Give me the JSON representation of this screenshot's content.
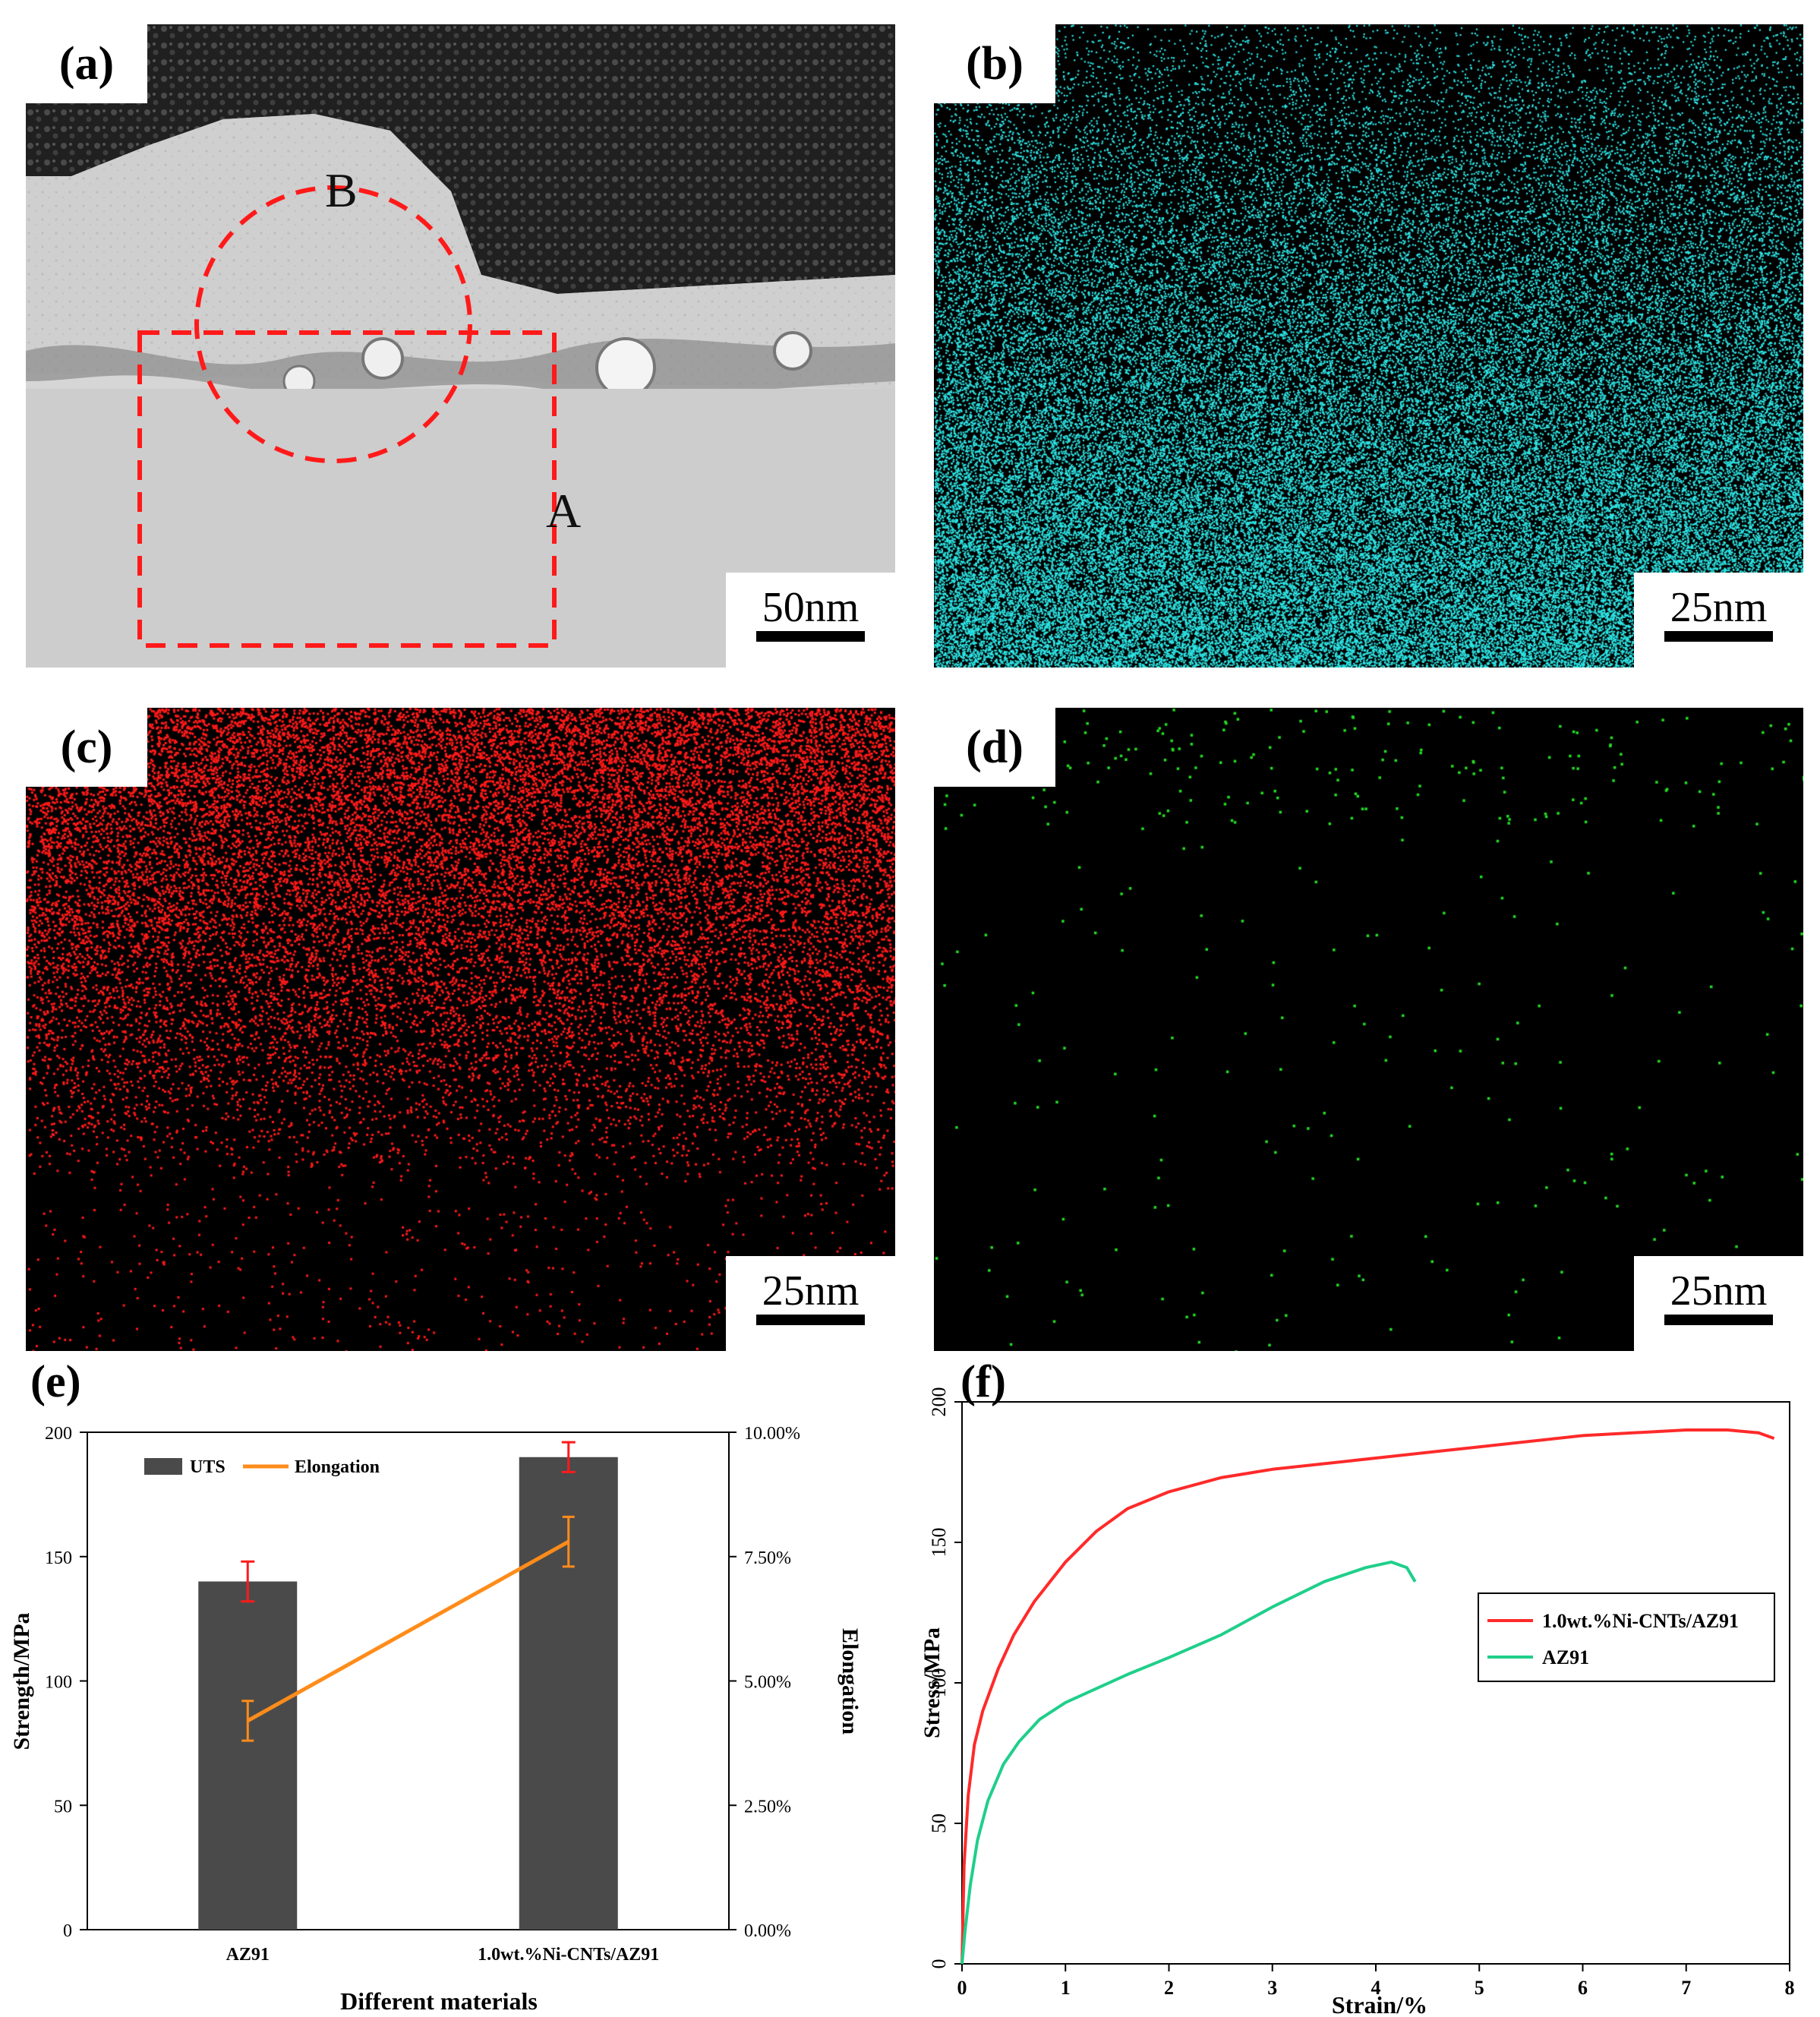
{
  "panels": {
    "a": {
      "letter": "(a)",
      "scale": "50nm",
      "label_a": "A",
      "label_b": "B"
    },
    "b": {
      "letter": "(b)",
      "scale": "25nm",
      "dot_color": "#2ee6e6"
    },
    "c": {
      "letter": "(c)",
      "scale": "25nm",
      "dot_color": "#ff1a1a"
    },
    "d": {
      "letter": "(d)",
      "scale": "25nm",
      "dot_color": "#22dd22"
    },
    "e": {
      "letter": "(e)"
    },
    "f": {
      "letter": "(f)"
    }
  },
  "chart_data": [
    {
      "panel": "e",
      "type": "bar",
      "categories": [
        "AZ91",
        "1.0wt.%Ni-CNTs/AZ91"
      ],
      "series": [
        {
          "name": "UTS",
          "axis": "left",
          "values": [
            140,
            190
          ],
          "errors": [
            8,
            6
          ],
          "color": "#4a4a4a"
        },
        {
          "name": "Elongation",
          "axis": "right",
          "chart": "line",
          "values": [
            0.042,
            0.078
          ],
          "errors": [
            0.004,
            0.005
          ],
          "color": "#ff8c1a"
        }
      ],
      "xlabel": "Different materials",
      "ylabel": "Strength/MPa",
      "y2label": "Elongation",
      "ylim": [
        0,
        200
      ],
      "y2lim": [
        0,
        0.1
      ],
      "yticks": [
        "0",
        "50",
        "100",
        "150",
        "200"
      ],
      "y2ticks": [
        "0.00%",
        "2.50%",
        "5.00%",
        "7.50%",
        "10.00%"
      ],
      "legend": "top-left",
      "grid": false
    },
    {
      "panel": "f",
      "type": "line",
      "xlabel": "Strain/%",
      "ylabel": "Stress/MPa",
      "xlim": [
        0,
        8
      ],
      "ylim": [
        0,
        200
      ],
      "xticks": [
        "0",
        "1",
        "2",
        "3",
        "4",
        "5",
        "6",
        "7",
        "8"
      ],
      "yticks": [
        "0",
        "50",
        "100",
        "150",
        "200"
      ],
      "legend": "right",
      "grid": false,
      "series": [
        {
          "name": "1.0wt.%Ni-CNTs/AZ91",
          "color": "#ff2a2a",
          "x": [
            0,
            0.02,
            0.06,
            0.12,
            0.2,
            0.35,
            0.5,
            0.7,
            1.0,
            1.3,
            1.6,
            2.0,
            2.5,
            3.0,
            4.0,
            5.0,
            6.0,
            7.0,
            7.4,
            7.7,
            7.85
          ],
          "y": [
            0,
            35,
            60,
            78,
            90,
            105,
            117,
            129,
            143,
            154,
            162,
            168,
            173,
            176,
            180,
            184,
            188,
            190,
            190,
            189,
            187
          ]
        },
        {
          "name": "AZ91",
          "color": "#1fcf8a",
          "x": [
            0,
            0.03,
            0.08,
            0.15,
            0.25,
            0.4,
            0.55,
            0.75,
            1.0,
            1.3,
            1.6,
            2.0,
            2.5,
            3.0,
            3.5,
            3.9,
            4.15,
            4.3,
            4.38
          ],
          "y": [
            0,
            12,
            28,
            44,
            58,
            71,
            79,
            87,
            93,
            98,
            103,
            109,
            117,
            127,
            136,
            141,
            143,
            141,
            136
          ]
        }
      ]
    }
  ]
}
